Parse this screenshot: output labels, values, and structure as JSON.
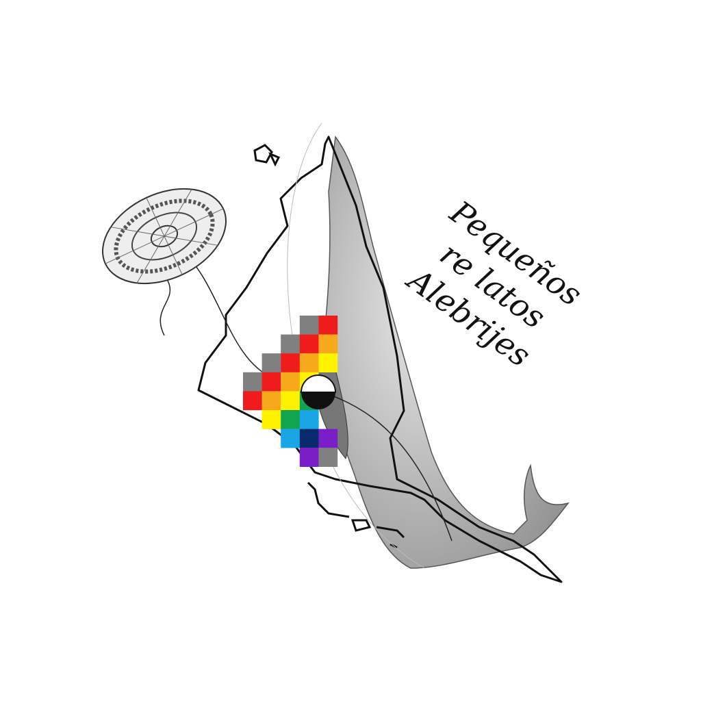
{
  "title": {
    "lines": [
      "Pequeños",
      "re latos",
      "Alebrijes"
    ]
  },
  "wiphala": {
    "colors": [
      "#808080",
      "#ee1c1c",
      "#f7a81b",
      "#fff200",
      "#12a550",
      "#1aa5e6",
      "#0a2a6e",
      "#7a1fc8",
      "#808080"
    ]
  },
  "colors": {
    "outline": "#111111",
    "whale": "#9a9a9a",
    "background": "#ffffff"
  },
  "icons": [
    "kite-icon",
    "whale-illustration",
    "map-outline",
    "wiphala-flag"
  ]
}
